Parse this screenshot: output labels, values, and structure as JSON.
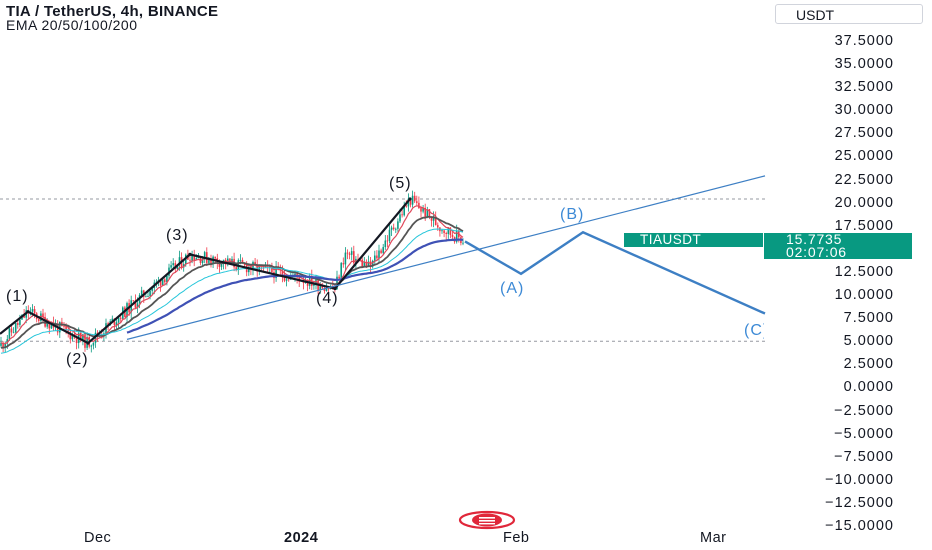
{
  "header": {
    "title": "TIA / TetherUS, 4h, BINANCE",
    "indicator": "EMA 20/50/100/200"
  },
  "currency": "USDT",
  "price_axis": {
    "ticks": [
      "37.5000",
      "35.0000",
      "32.5000",
      "30.0000",
      "27.5000",
      "25.0000",
      "22.5000",
      "20.0000",
      "17.5000",
      "15.0000",
      "12.5000",
      "10.0000",
      "7.5000",
      "5.0000",
      "2.5000",
      "0.0000",
      "−2.5000",
      "−5.0000",
      "−7.5000",
      "−10.0000",
      "−12.5000",
      "−15.0000"
    ],
    "tick_values": [
      37.5,
      35,
      32.5,
      30,
      27.5,
      25,
      22.5,
      20,
      17.5,
      15,
      12.5,
      10,
      7.5,
      5,
      2.5,
      0,
      -2.5,
      -5,
      -7.5,
      -10,
      -12.5,
      -15
    ]
  },
  "time_axis": {
    "labels": [
      "Dec",
      "2024",
      "Feb",
      "Mar"
    ]
  },
  "last_price": {
    "symbol": "TIAUSDT",
    "price": "15.7735",
    "countdown": "02:07:06"
  },
  "wave_labels": {
    "w1": "(1)",
    "w2": "(2)",
    "w3": "(3)",
    "w4": "(4)",
    "w5": "(5)",
    "wA": "(A)",
    "wB": "(B)",
    "wC": "(C)"
  },
  "colors": {
    "impulse": "#131722",
    "projection": "#3d7fc4",
    "up_candle": "#089981",
    "down_candle": "#f23645",
    "ema20": "#e0495b",
    "ema50": "#555555",
    "ema100": "#26c6da",
    "ema200": "#3f51b5",
    "badge": "#089981"
  },
  "chart_data": {
    "type": "candlestick",
    "symbol": "TIA / TetherUS",
    "interval": "4h",
    "exchange": "BINANCE",
    "ylim": [
      -15,
      37.5
    ],
    "horizontal_levels": [
      20.4,
      5.0
    ],
    "elliott_wave_points": [
      {
        "label": "(1)",
        "value": 8.2
      },
      {
        "label": "(2)",
        "value": 4.8
      },
      {
        "label": "(3)",
        "value": 14.4
      },
      {
        "label": "(4)",
        "value": 10.7
      },
      {
        "label": "(5)",
        "value": 20.4
      }
    ],
    "projection_points": [
      {
        "label": "start",
        "value": 15.8
      },
      {
        "label": "(A)",
        "value": 12.3
      },
      {
        "label": "(B)",
        "value": 16.8
      },
      {
        "label": "(C)",
        "value": 8.0
      }
    ],
    "trendline": {
      "from_value": 5.2,
      "to_value": 22.9
    },
    "last_price": 15.7735
  }
}
